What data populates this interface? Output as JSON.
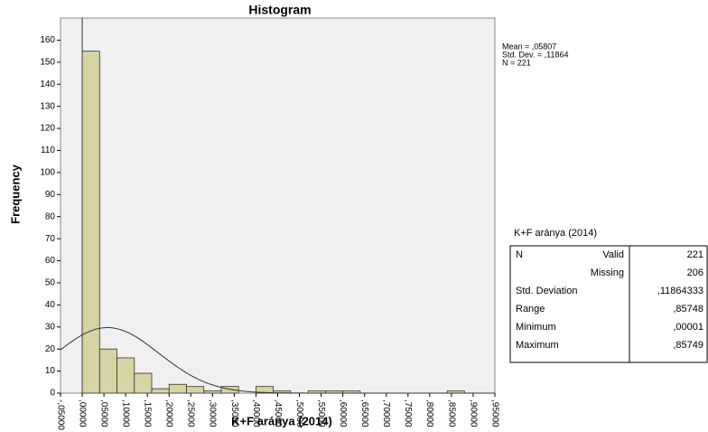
{
  "chart_data": {
    "type": "histogram",
    "title": "Histogram",
    "x_label": "K+F aránya (2014)",
    "y_label": "Frequency",
    "bins": [
      0,
      0.04,
      0.08,
      0.12,
      0.16,
      0.2,
      0.24,
      0.28,
      0.32,
      0.36,
      0.4,
      0.44,
      0.48,
      0.52,
      0.56,
      0.6,
      0.64,
      0.68,
      0.72,
      0.76,
      0.8,
      0.84,
      0.88
    ],
    "counts": [
      155,
      20,
      16,
      9,
      2,
      4,
      3,
      1,
      3,
      0,
      3,
      1,
      0,
      1,
      1,
      1,
      0,
      0,
      0,
      0,
      0,
      1
    ],
    "color": "#d6d3a4",
    "xlim": [
      -0.05,
      0.95
    ],
    "xticks": [
      {
        "value": -0.05,
        "label": "-,05000"
      },
      {
        "value": 0,
        "label": ",00000"
      },
      {
        "value": 0.05,
        "label": ",05000"
      },
      {
        "value": 0.1,
        "label": ",10000"
      },
      {
        "value": 0.15,
        "label": ",15000"
      },
      {
        "value": 0.2,
        "label": ",20000"
      },
      {
        "value": 0.25,
        "label": ",25000"
      },
      {
        "value": 0.3,
        "label": ",30000"
      },
      {
        "value": 0.35,
        "label": ",35000"
      },
      {
        "value": 0.4,
        "label": ",40000"
      },
      {
        "value": 0.45,
        "label": ",45000"
      },
      {
        "value": 0.5,
        "label": ",50000"
      },
      {
        "value": 0.55,
        "label": ",55000"
      },
      {
        "value": 0.6,
        "label": ",60000"
      },
      {
        "value": 0.65,
        "label": ",65000"
      },
      {
        "value": 0.7,
        "label": ",70000"
      },
      {
        "value": 0.75,
        "label": ",75000"
      },
      {
        "value": 0.8,
        "label": ",80000"
      },
      {
        "value": 0.85,
        "label": ",85000"
      },
      {
        "value": 0.9,
        "label": ",90000"
      },
      {
        "value": 0.95,
        "label": ",95000"
      }
    ],
    "ylim": [
      0,
      170
    ],
    "yticks": [
      0,
      10,
      20,
      30,
      40,
      50,
      60,
      70,
      80,
      90,
      100,
      110,
      120,
      130,
      140,
      150,
      160
    ],
    "annotations": [
      "Mean = ,05807",
      "Std. Dev. = ,11864",
      "N = 221"
    ],
    "normal_curve": {
      "mean": 0.05807,
      "std": 0.11864,
      "n": 221
    }
  },
  "table": {
    "title": "K+F aránya (2014)",
    "rows": [
      {
        "label": "N",
        "sub": "Valid",
        "value": "221"
      },
      {
        "sub": "Missing",
        "value": "206"
      },
      {
        "label": "Std. Deviation",
        "value": ",11864333"
      },
      {
        "label": "Range",
        "value": ",85748"
      },
      {
        "label": "Minimum",
        "value": ",00001"
      },
      {
        "label": "Maximum",
        "value": ",85749"
      }
    ]
  }
}
